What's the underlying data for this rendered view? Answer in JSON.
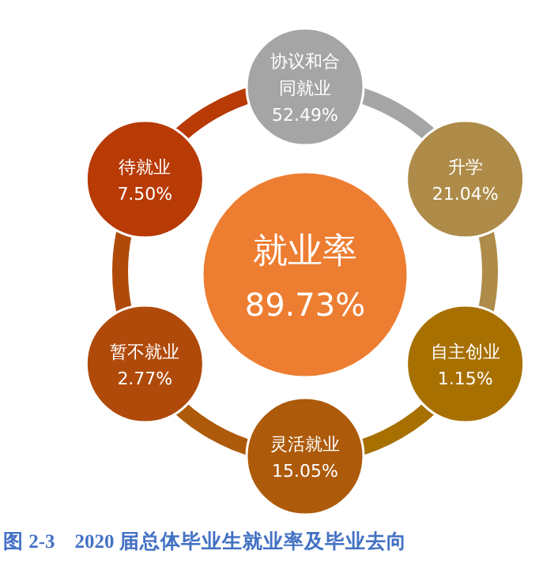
{
  "chart_data": {
    "type": "other",
    "title": "图 2-3    2020 届总体毕业生就业率及毕业去向",
    "categories": [
      "协议和合同就业",
      "升学",
      "自主创业",
      "灵活就业",
      "暂不就业",
      "待就业"
    ],
    "values": [
      52.49,
      21.04,
      1.15,
      15.05,
      2.77,
      7.5
    ],
    "value_labels": [
      "52.49%",
      "21.04%",
      "1.15%",
      "15.05%",
      "2.77%",
      "7.50%"
    ],
    "colors": [
      "#a5a5a5",
      "#ae8b48",
      "#a87000",
      "#ad5a0a",
      "#b04a0a",
      "#b83a05"
    ],
    "annotations": [
      "就业率",
      "89.73%"
    ]
  }
}
